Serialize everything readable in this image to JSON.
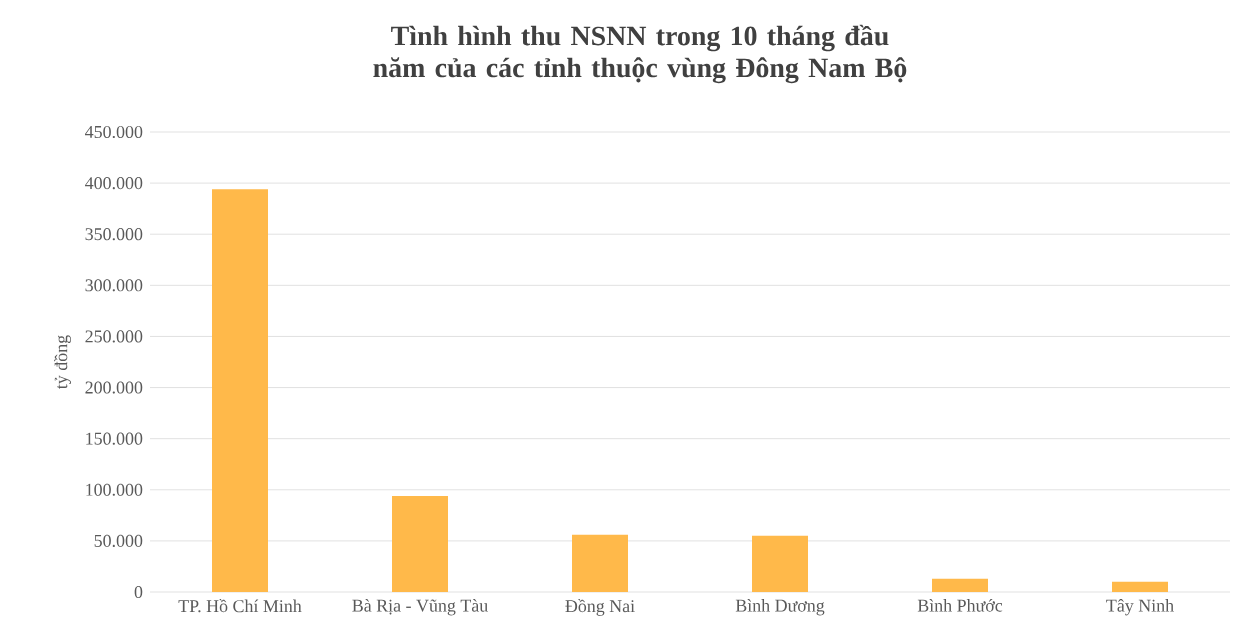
{
  "chart_data": {
    "type": "bar",
    "title": "Tình hình thu NSNN trong 10 tháng đầu năm của các tỉnh thuộc vùng Đông Nam Bộ",
    "ylabel": "tỷ đồng",
    "categories": [
      "TP. Hồ Chí Minh",
      "Bà Rịa - Vũng Tàu",
      "Đồng Nai",
      "Bình Dương",
      "Bình Phước",
      "Tây Ninh"
    ],
    "values": [
      394000,
      94000,
      56000,
      55000,
      13000,
      10000
    ],
    "color": "#ffb94a",
    "ylim": [
      0,
      450000
    ],
    "yticks": [
      {
        "value": 0,
        "label": "0"
      },
      {
        "value": 50000,
        "label": "50.000"
      },
      {
        "value": 100000,
        "label": "100.000"
      },
      {
        "value": 150000,
        "label": "150.000"
      },
      {
        "value": 200000,
        "label": "200.000"
      },
      {
        "value": 250000,
        "label": "250.000"
      },
      {
        "value": 300000,
        "label": "300.000"
      },
      {
        "value": 350000,
        "label": "350.000"
      },
      {
        "value": 400000,
        "label": "400.000"
      },
      {
        "value": 450000,
        "label": "450.000"
      }
    ],
    "grid": "y"
  }
}
